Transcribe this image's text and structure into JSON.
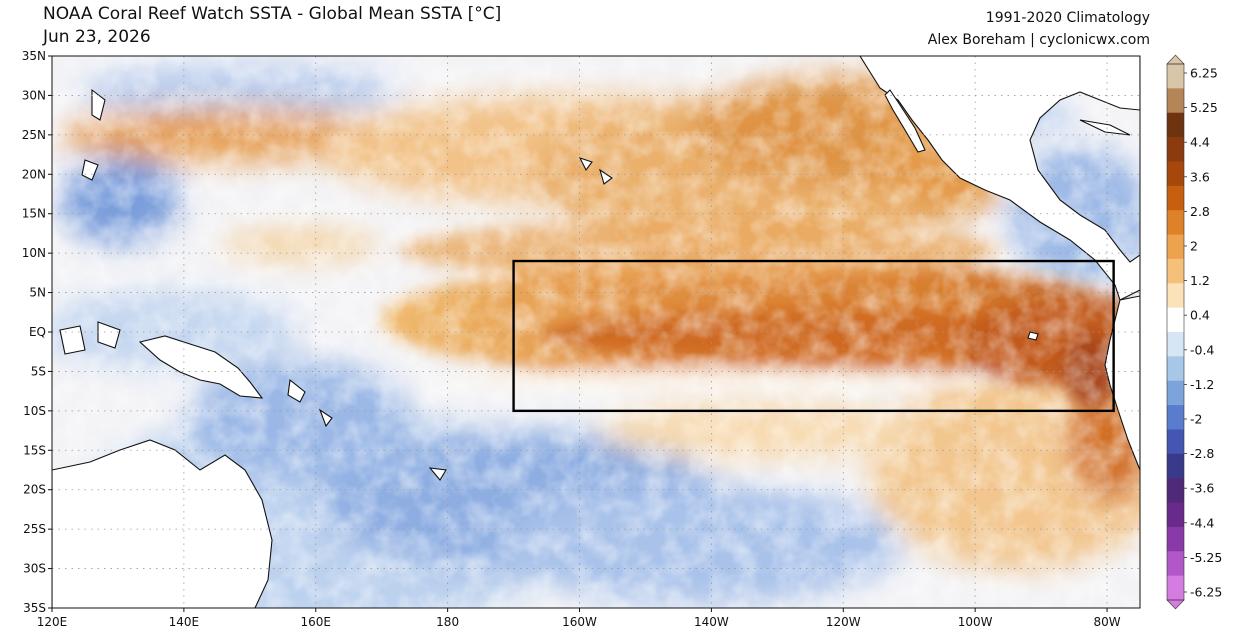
{
  "header": {
    "title": "NOAA Coral Reef Watch SSTA - Global Mean SSTA [°C]",
    "date": "Jun 23, 2026",
    "climatology": "1991-2020 Climatology",
    "credit": "Alex Boreham | cyclonicwx.com"
  },
  "map": {
    "lat_labels": [
      "35N",
      "30N",
      "25N",
      "20N",
      "15N",
      "10N",
      "5N",
      "EQ",
      "5S",
      "10S",
      "15S",
      "20S",
      "25S",
      "30S",
      "35S"
    ],
    "lon_labels": [
      "120E",
      "140E",
      "160E",
      "180",
      "160W",
      "140W",
      "120W",
      "100W",
      "80W"
    ],
    "lat_range": [
      -35,
      35
    ],
    "lon_range": [
      120,
      285
    ],
    "highlight_box": {
      "lat_range": [
        -10,
        9
      ],
      "lon_range": [
        190,
        281
      ]
    },
    "gridlines": "dotted"
  },
  "colorbar": {
    "labels": [
      "6.25",
      "5.25",
      "4.4",
      "3.6",
      "2.8",
      "2",
      "1.2",
      "0.4",
      "-0.4",
      "-1.2",
      "-2",
      "-2.8",
      "-3.6",
      "-4.4",
      "-5.25",
      "-6.25"
    ],
    "colors": [
      "#d9c6a8",
      "#b48556",
      "#6e3412",
      "#8c3a10",
      "#a6480c",
      "#c66010",
      "#dd8228",
      "#eda24e",
      "#f5c07a",
      "#fbe2b8",
      "#ffffff",
      "#d7e6f4",
      "#a8c6e8",
      "#7da4da",
      "#5a7ccc",
      "#4456b2",
      "#3a3a8a",
      "#502a78",
      "#6a2a8a",
      "#8a3aa8",
      "#b058c8",
      "#d47ce0"
    ],
    "unit": "°C"
  }
}
